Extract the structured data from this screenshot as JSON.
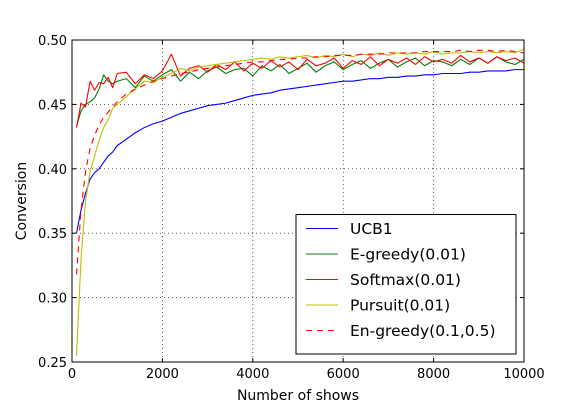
{
  "chart_data": {
    "type": "line",
    "xlabel": "Number of shows",
    "ylabel": "Conversion",
    "xlim": [
      0,
      10000
    ],
    "ylim": [
      0.25,
      0.5
    ],
    "xticks": [
      0,
      2000,
      4000,
      6000,
      8000,
      10000
    ],
    "xtick_labels": [
      "0",
      "2000",
      "4000",
      "6000",
      "8000",
      "10000"
    ],
    "yticks": [
      0.25,
      0.3,
      0.35,
      0.4,
      0.45,
      0.5
    ],
    "ytick_labels": [
      "0.25",
      "0.30",
      "0.35",
      "0.40",
      "0.45",
      "0.50"
    ],
    "grid": true,
    "legend_position": "lower-right",
    "series": [
      {
        "name": "UCB1",
        "color": "#0000ff",
        "style": "solid",
        "x": [
          100,
          200,
          300,
          400,
          500,
          600,
          700,
          800,
          900,
          1000,
          1200,
          1400,
          1600,
          1800,
          2000,
          2200,
          2400,
          2600,
          2800,
          3000,
          3200,
          3400,
          3600,
          3800,
          4000,
          4200,
          4400,
          4600,
          4800,
          5000,
          5200,
          5400,
          5600,
          5800,
          6000,
          6200,
          6400,
          6600,
          6800,
          7000,
          7200,
          7400,
          7600,
          7800,
          8000,
          8200,
          8400,
          8600,
          8800,
          9000,
          9200,
          9400,
          9600,
          9800,
          10000
        ],
        "y": [
          0.35,
          0.368,
          0.381,
          0.392,
          0.397,
          0.4,
          0.405,
          0.41,
          0.413,
          0.418,
          0.423,
          0.428,
          0.432,
          0.435,
          0.437,
          0.44,
          0.443,
          0.445,
          0.447,
          0.449,
          0.45,
          0.451,
          0.453,
          0.455,
          0.457,
          0.458,
          0.459,
          0.461,
          0.462,
          0.463,
          0.464,
          0.465,
          0.466,
          0.467,
          0.468,
          0.468,
          0.469,
          0.47,
          0.47,
          0.471,
          0.471,
          0.472,
          0.472,
          0.473,
          0.473,
          0.474,
          0.474,
          0.474,
          0.475,
          0.475,
          0.476,
          0.476,
          0.476,
          0.477,
          0.477
        ]
      },
      {
        "name": "E-greedy(0.01)",
        "color": "#008000",
        "style": "solid",
        "x": [
          100,
          200,
          300,
          400,
          500,
          600,
          700,
          800,
          900,
          1000,
          1200,
          1400,
          1600,
          1800,
          2000,
          2200,
          2400,
          2600,
          2800,
          3000,
          3200,
          3400,
          3600,
          3800,
          4000,
          4200,
          4400,
          4600,
          4800,
          5000,
          5200,
          5400,
          5600,
          5800,
          6000,
          6200,
          6400,
          6600,
          6800,
          7000,
          7200,
          7400,
          7600,
          7800,
          8000,
          8200,
          8400,
          8600,
          8800,
          9000,
          9200,
          9400,
          9600,
          9800,
          10000
        ],
        "y": [
          0.433,
          0.445,
          0.45,
          0.452,
          0.455,
          0.462,
          0.473,
          0.468,
          0.466,
          0.468,
          0.47,
          0.463,
          0.472,
          0.468,
          0.473,
          0.477,
          0.468,
          0.475,
          0.47,
          0.476,
          0.479,
          0.474,
          0.477,
          0.478,
          0.472,
          0.48,
          0.476,
          0.481,
          0.474,
          0.478,
          0.482,
          0.475,
          0.48,
          0.483,
          0.477,
          0.481,
          0.484,
          0.478,
          0.482,
          0.485,
          0.479,
          0.483,
          0.486,
          0.48,
          0.484,
          0.483,
          0.48,
          0.485,
          0.481,
          0.486,
          0.482,
          0.487,
          0.483,
          0.481,
          0.485
        ]
      },
      {
        "name": "Softmax(0.01)",
        "color": "#ff0000",
        "style": "solid",
        "x": [
          100,
          200,
          300,
          400,
          500,
          600,
          700,
          800,
          900,
          1000,
          1200,
          1400,
          1600,
          1800,
          2000,
          2200,
          2400,
          2600,
          2800,
          3000,
          3200,
          3400,
          3600,
          3800,
          4000,
          4200,
          4400,
          4600,
          4800,
          5000,
          5200,
          5400,
          5600,
          5800,
          6000,
          6200,
          6400,
          6600,
          6800,
          7000,
          7200,
          7400,
          7600,
          7800,
          8000,
          8200,
          8400,
          8600,
          8800,
          9000,
          9200,
          9400,
          9600,
          9800,
          10000
        ],
        "y": [
          0.432,
          0.451,
          0.448,
          0.468,
          0.461,
          0.467,
          0.466,
          0.471,
          0.463,
          0.474,
          0.475,
          0.466,
          0.473,
          0.47,
          0.476,
          0.489,
          0.472,
          0.478,
          0.48,
          0.475,
          0.481,
          0.477,
          0.483,
          0.476,
          0.482,
          0.478,
          0.484,
          0.479,
          0.483,
          0.477,
          0.485,
          0.48,
          0.482,
          0.486,
          0.478,
          0.484,
          0.481,
          0.487,
          0.48,
          0.485,
          0.482,
          0.486,
          0.481,
          0.487,
          0.483,
          0.485,
          0.482,
          0.488,
          0.483,
          0.486,
          0.482,
          0.487,
          0.484,
          0.486,
          0.482
        ]
      },
      {
        "name": "Pursuit(0.01)",
        "color": "#bfbf00",
        "style": "solid",
        "x": [
          100,
          200,
          300,
          400,
          500,
          600,
          700,
          800,
          900,
          1000,
          1200,
          1400,
          1600,
          1800,
          2000,
          2200,
          2400,
          2600,
          2800,
          3000,
          3200,
          3400,
          3600,
          3800,
          4000,
          4200,
          4400,
          4600,
          4800,
          5000,
          5200,
          5400,
          5600,
          5800,
          6000,
          6200,
          6400,
          6600,
          6800,
          7000,
          7200,
          7400,
          7600,
          7800,
          8000,
          8200,
          8400,
          8600,
          8800,
          9000,
          9200,
          9400,
          9600,
          9800,
          10000
        ],
        "y": [
          0.255,
          0.33,
          0.375,
          0.398,
          0.41,
          0.422,
          0.432,
          0.438,
          0.447,
          0.45,
          0.456,
          0.462,
          0.468,
          0.467,
          0.471,
          0.474,
          0.478,
          0.476,
          0.479,
          0.48,
          0.481,
          0.482,
          0.483,
          0.484,
          0.485,
          0.486,
          0.485,
          0.487,
          0.486,
          0.487,
          0.488,
          0.486,
          0.488,
          0.487,
          0.489,
          0.487,
          0.489,
          0.488,
          0.49,
          0.488,
          0.49,
          0.489,
          0.49,
          0.489,
          0.491,
          0.489,
          0.49,
          0.49,
          0.491,
          0.49,
          0.491,
          0.49,
          0.491,
          0.49,
          0.493
        ]
      },
      {
        "name": "En-greedy(0.1,0.5)",
        "color": "#ff0000",
        "style": "dashed",
        "x": [
          100,
          200,
          300,
          400,
          500,
          600,
          700,
          800,
          900,
          1000,
          1200,
          1400,
          1600,
          1800,
          2000,
          2200,
          2400,
          2600,
          2800,
          3000,
          3200,
          3400,
          3600,
          3800,
          4000,
          4200,
          4400,
          4600,
          4800,
          5000,
          5200,
          5400,
          5600,
          5800,
          6000,
          6200,
          6400,
          6600,
          6800,
          7000,
          7200,
          7400,
          7600,
          7800,
          8000,
          8200,
          8400,
          8600,
          8800,
          9000,
          9200,
          9400,
          9600,
          9800,
          10000
        ],
        "y": [
          0.318,
          0.368,
          0.398,
          0.416,
          0.426,
          0.434,
          0.44,
          0.444,
          0.448,
          0.452,
          0.458,
          0.462,
          0.465,
          0.468,
          0.47,
          0.472,
          0.474,
          0.475,
          0.477,
          0.478,
          0.479,
          0.48,
          0.481,
          0.482,
          0.483,
          0.483,
          0.484,
          0.485,
          0.485,
          0.486,
          0.486,
          0.487,
          0.487,
          0.488,
          0.488,
          0.488,
          0.489,
          0.489,
          0.489,
          0.49,
          0.49,
          0.49,
          0.49,
          0.491,
          0.491,
          0.491,
          0.491,
          0.492,
          0.491,
          0.492,
          0.492,
          0.491,
          0.492,
          0.491,
          0.49
        ]
      }
    ]
  }
}
